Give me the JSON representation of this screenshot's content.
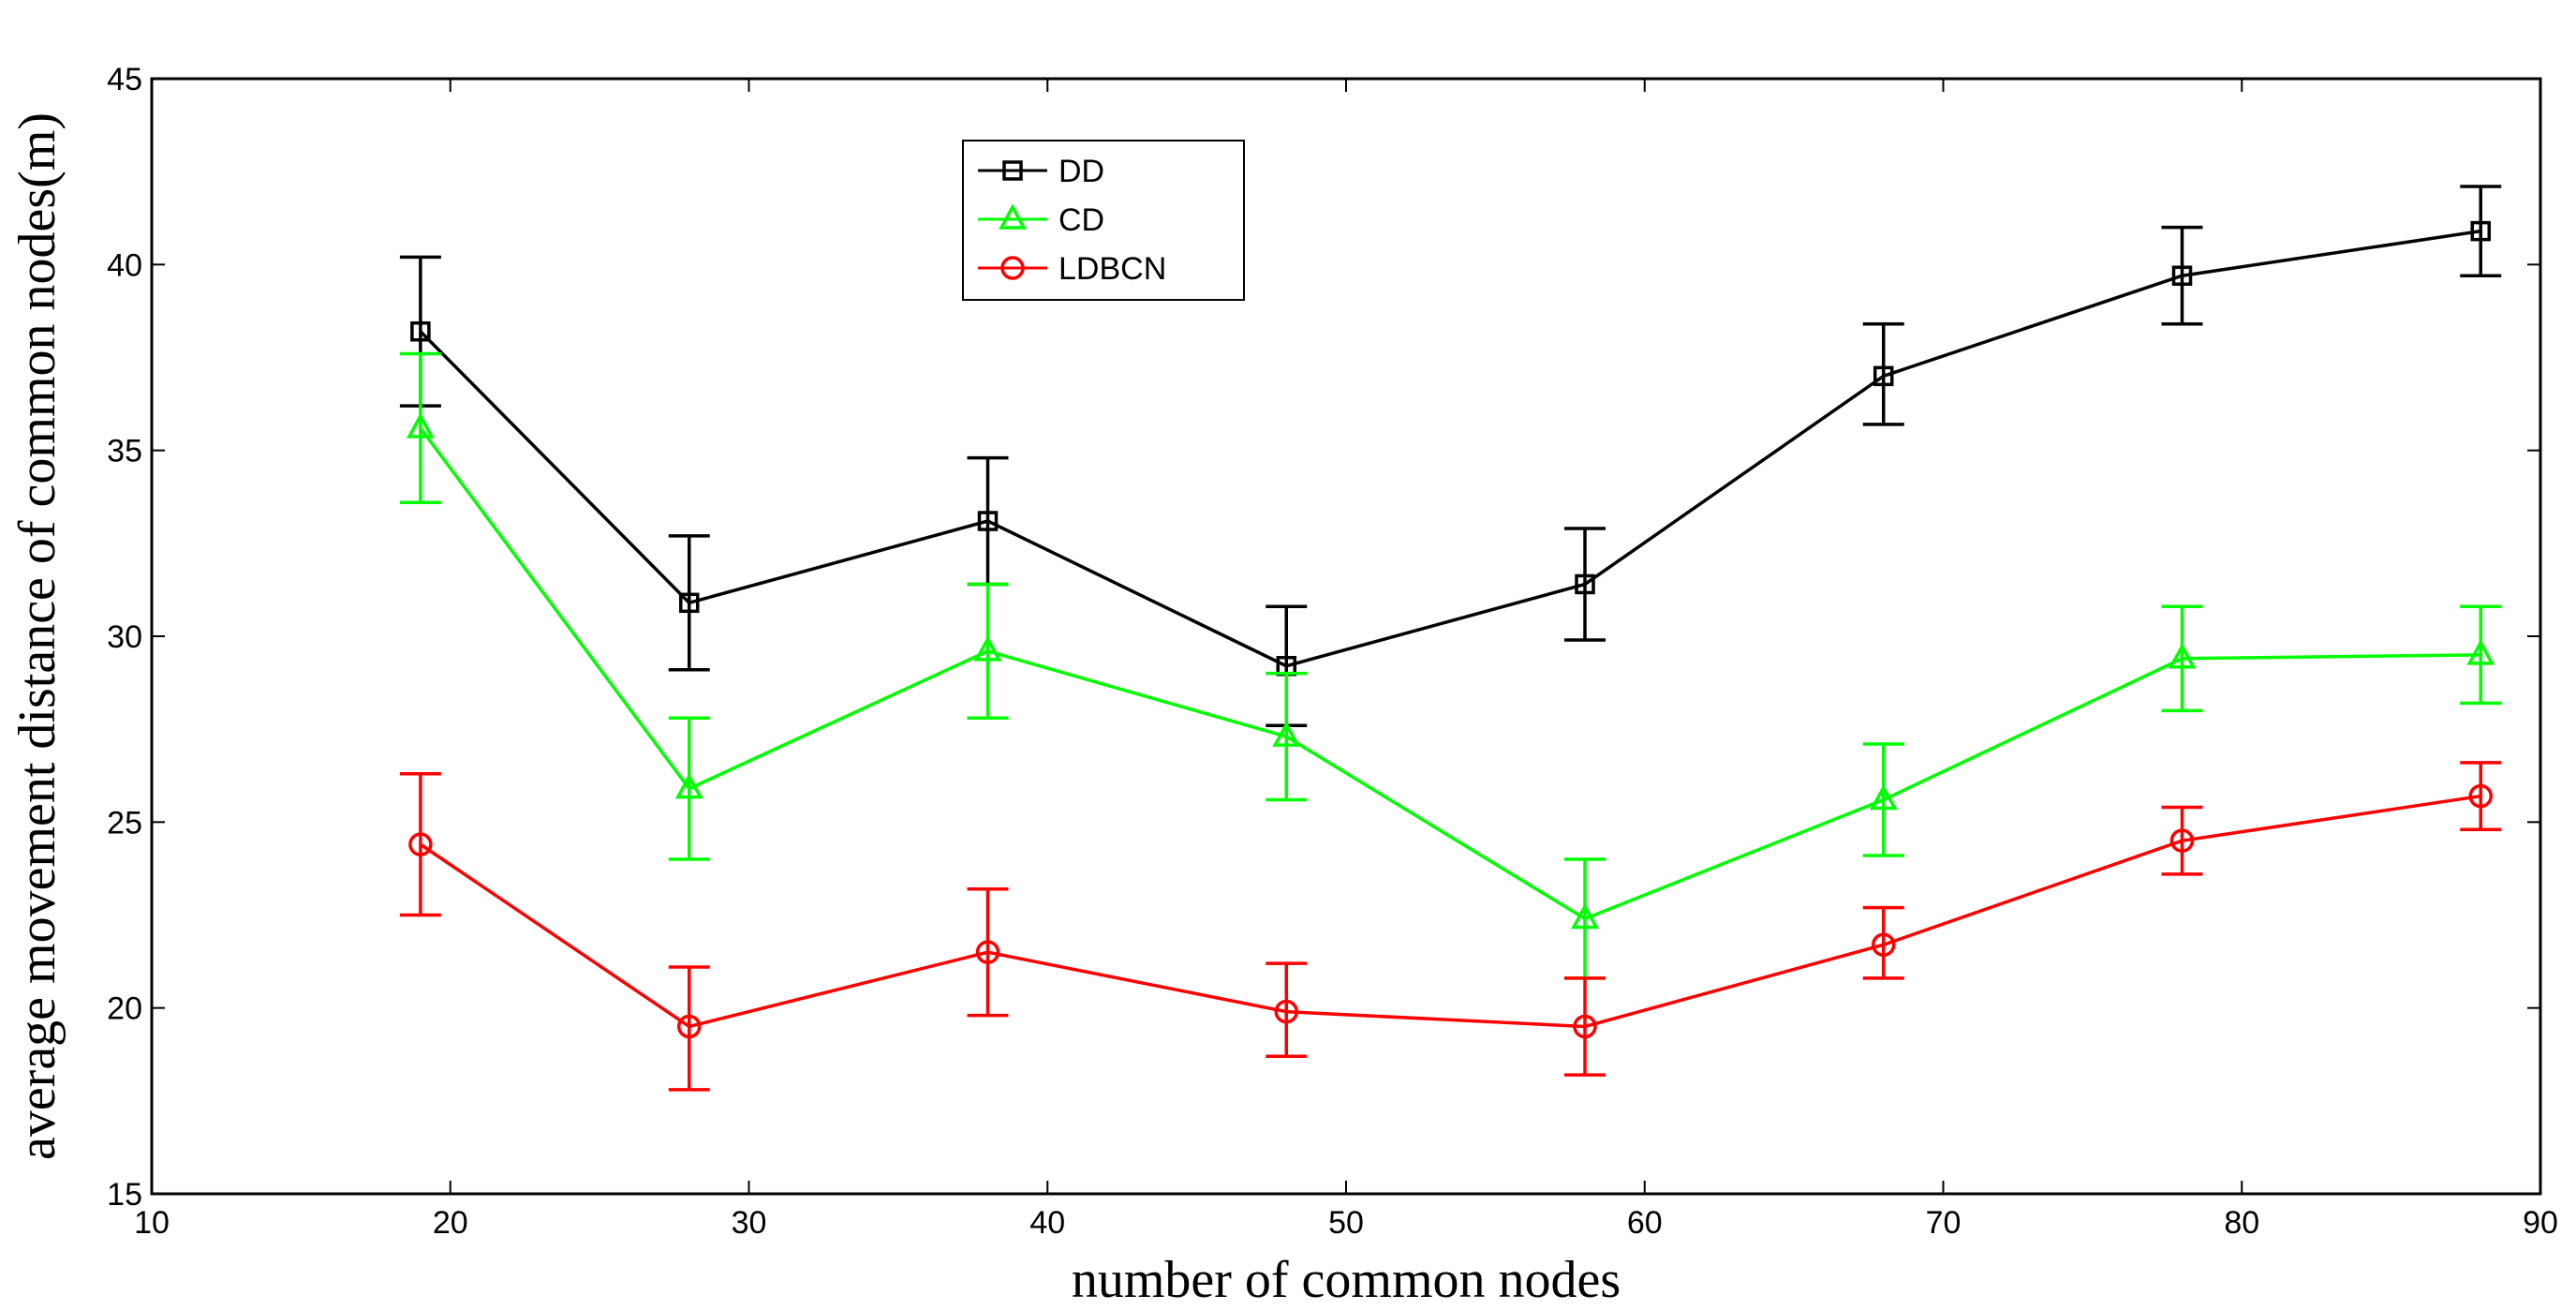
{
  "chart_data": {
    "type": "line",
    "title": "",
    "xlabel": "number of common nodes",
    "ylabel": "average movement distance of common nodes(m)",
    "xlim": [
      10,
      90
    ],
    "ylim": [
      15,
      45
    ],
    "xticks": [
      10,
      20,
      30,
      40,
      50,
      60,
      70,
      80,
      90
    ],
    "yticks": [
      15,
      20,
      25,
      30,
      35,
      40,
      45
    ],
    "grid": false,
    "legend_position": "top-left",
    "error_bars": true,
    "x": [
      19,
      28,
      38,
      48,
      58,
      68,
      78,
      88
    ],
    "series": [
      {
        "name": "DD",
        "color": "#000000",
        "marker": "square",
        "values": [
          38.2,
          30.9,
          33.1,
          29.2,
          31.4,
          37.0,
          39.7,
          40.9
        ],
        "err_low": [
          36.2,
          29.1,
          31.4,
          27.6,
          29.9,
          35.7,
          38.4,
          39.7
        ],
        "err_high": [
          40.2,
          32.7,
          34.8,
          30.8,
          32.9,
          38.4,
          41.0,
          42.1
        ]
      },
      {
        "name": "CD",
        "color": "#00ff00",
        "marker": "triangle",
        "values": [
          35.6,
          25.9,
          29.6,
          27.3,
          22.4,
          25.6,
          29.4,
          29.5
        ],
        "err_low": [
          33.6,
          24.0,
          27.8,
          25.6,
          20.8,
          24.1,
          28.0,
          28.2
        ],
        "err_high": [
          37.6,
          27.8,
          31.4,
          29.0,
          24.0,
          27.1,
          30.8,
          30.8
        ]
      },
      {
        "name": "LDBCN",
        "color": "#ff0000",
        "marker": "circle",
        "values": [
          24.4,
          19.5,
          21.5,
          19.9,
          19.5,
          21.7,
          24.5,
          25.7
        ],
        "err_low": [
          22.5,
          17.8,
          19.8,
          18.7,
          18.2,
          20.8,
          23.6,
          24.8
        ],
        "err_high": [
          26.3,
          21.1,
          23.2,
          21.2,
          20.8,
          22.7,
          25.4,
          26.6
        ]
      }
    ]
  }
}
